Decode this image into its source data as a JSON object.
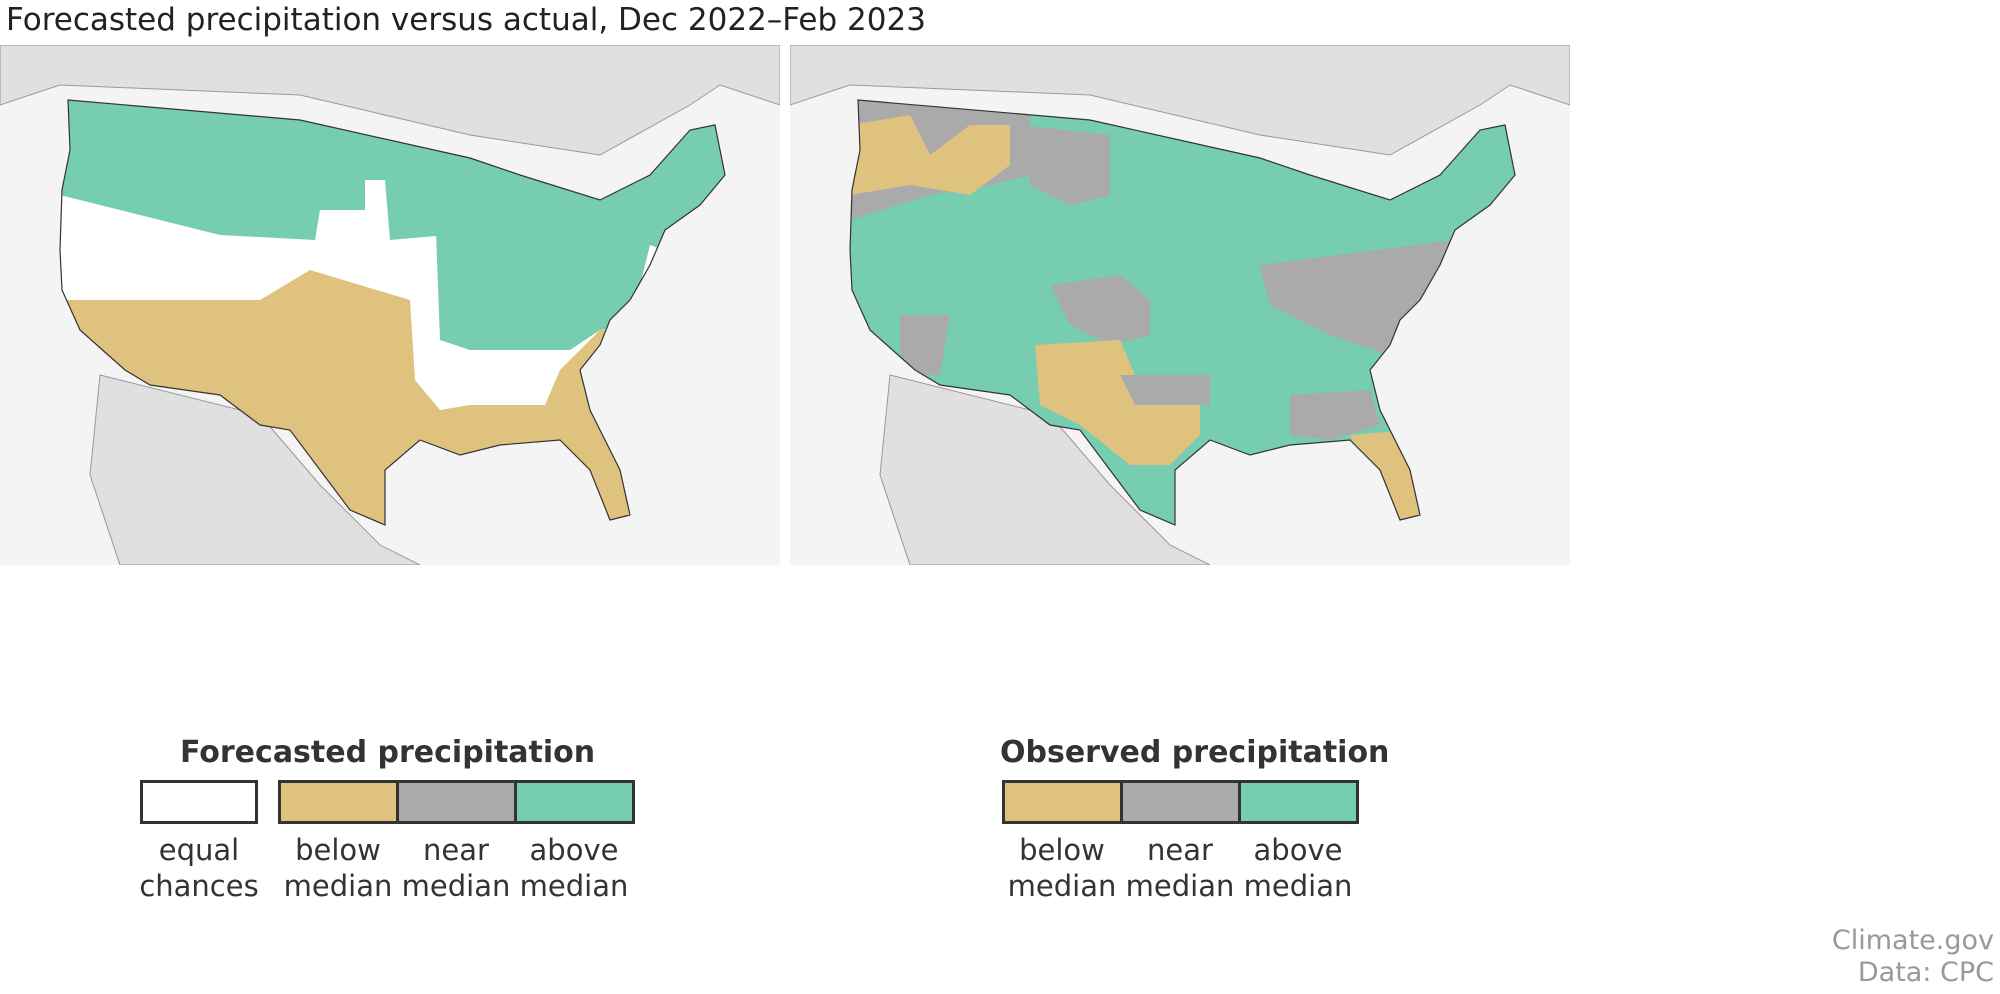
{
  "title": "Forecasted precipitation versus actual, Dec 2022–Feb 2023",
  "colors": {
    "equal": "#ffffff",
    "below": "#dfc27d",
    "near": "#aaaaaa",
    "above": "#76cdb0",
    "land": "#e0e0e0",
    "ocean": "#f4f4f4"
  },
  "left_panel": {
    "legend_title": "Forecasted precipitation",
    "items": [
      {
        "line1": "equal",
        "line2": "chances"
      },
      {
        "line1": "below",
        "line2": "median"
      },
      {
        "line1": "near",
        "line2": "median"
      },
      {
        "line1": "above",
        "line2": "median"
      }
    ]
  },
  "right_panel": {
    "legend_title": "Observed precipitation",
    "items": [
      {
        "line1": "below",
        "line2": "median"
      },
      {
        "line1": "near",
        "line2": "median"
      },
      {
        "line1": "above",
        "line2": "median"
      }
    ]
  },
  "credits": {
    "line1": "Climate.gov",
    "line2": "Data: CPC"
  }
}
